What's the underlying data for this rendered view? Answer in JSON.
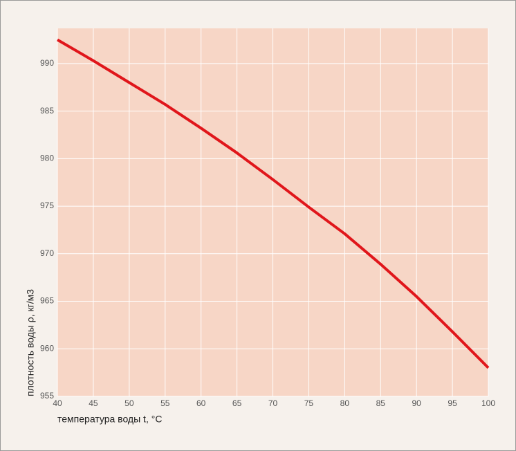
{
  "chart_data": {
    "type": "line",
    "x": [
      40,
      45,
      50,
      55,
      60,
      65,
      70,
      75,
      80,
      85,
      90,
      95,
      100
    ],
    "values": [
      992.5,
      990.3,
      988.0,
      985.7,
      983.2,
      980.6,
      977.8,
      974.9,
      972.1,
      968.9,
      965.5,
      961.8,
      958.0
    ],
    "color": "#e0161b",
    "xlim": [
      40,
      100
    ],
    "ylim": [
      955,
      993.7
    ],
    "xticks": [
      40,
      45,
      50,
      55,
      60,
      65,
      70,
      75,
      80,
      85,
      90,
      95,
      100
    ],
    "yticks": [
      955,
      960,
      965,
      970,
      975,
      980,
      985,
      990
    ],
    "xlabel": "температура воды t, °C",
    "ylabel": "плотность воды ρ, кг/м3",
    "grid": true
  }
}
